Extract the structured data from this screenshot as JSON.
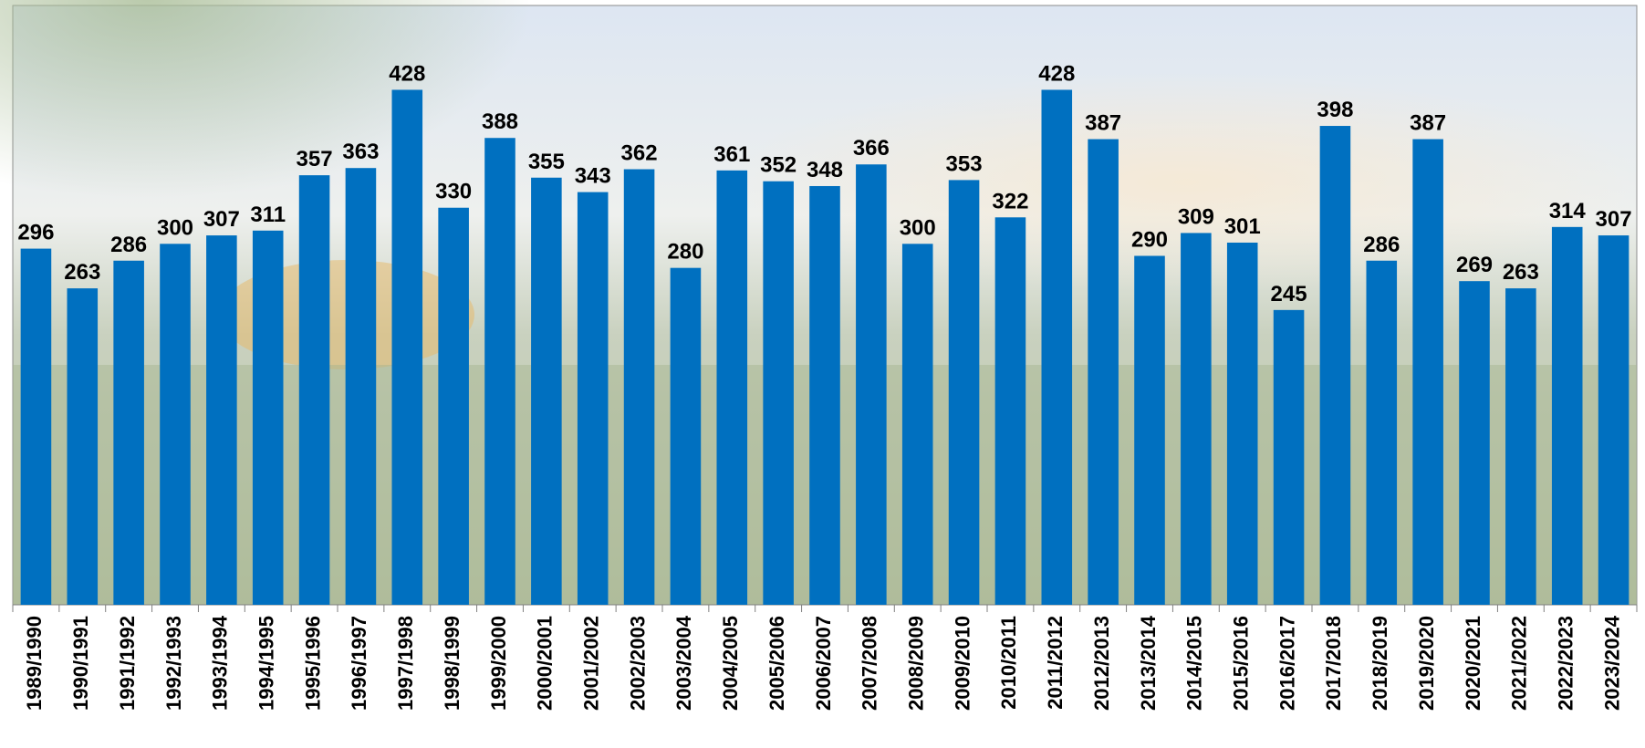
{
  "chart_data": {
    "type": "bar",
    "categories": [
      "1989/1990",
      "1990/1991",
      "1991/1992",
      "1992/1993",
      "1993/1994",
      "1994/1995",
      "1995/1996",
      "1996/1997",
      "1997/1998",
      "1998/1999",
      "1999/2000",
      "2000/2001",
      "2001/2002",
      "2002/2003",
      "2003/2004",
      "2004/2005",
      "2005/2006",
      "2006/2007",
      "2007/2008",
      "2008/2009",
      "2009/2010",
      "2010/2011",
      "2011/2012",
      "2012/2013",
      "2013/2014",
      "2014/2015",
      "2015/2016",
      "2016/2017",
      "2017/2018",
      "2018/2019",
      "2019/2020",
      "2020/2021",
      "2021/2022",
      "2022/2023",
      "2023/2024"
    ],
    "values": [
      296,
      263,
      286,
      300,
      307,
      311,
      357,
      363,
      428,
      330,
      388,
      355,
      343,
      362,
      280,
      361,
      352,
      348,
      366,
      300,
      353,
      322,
      428,
      387,
      290,
      309,
      301,
      245,
      398,
      286,
      387,
      269,
      263,
      314,
      307
    ],
    "color": "#0070c0"
  }
}
